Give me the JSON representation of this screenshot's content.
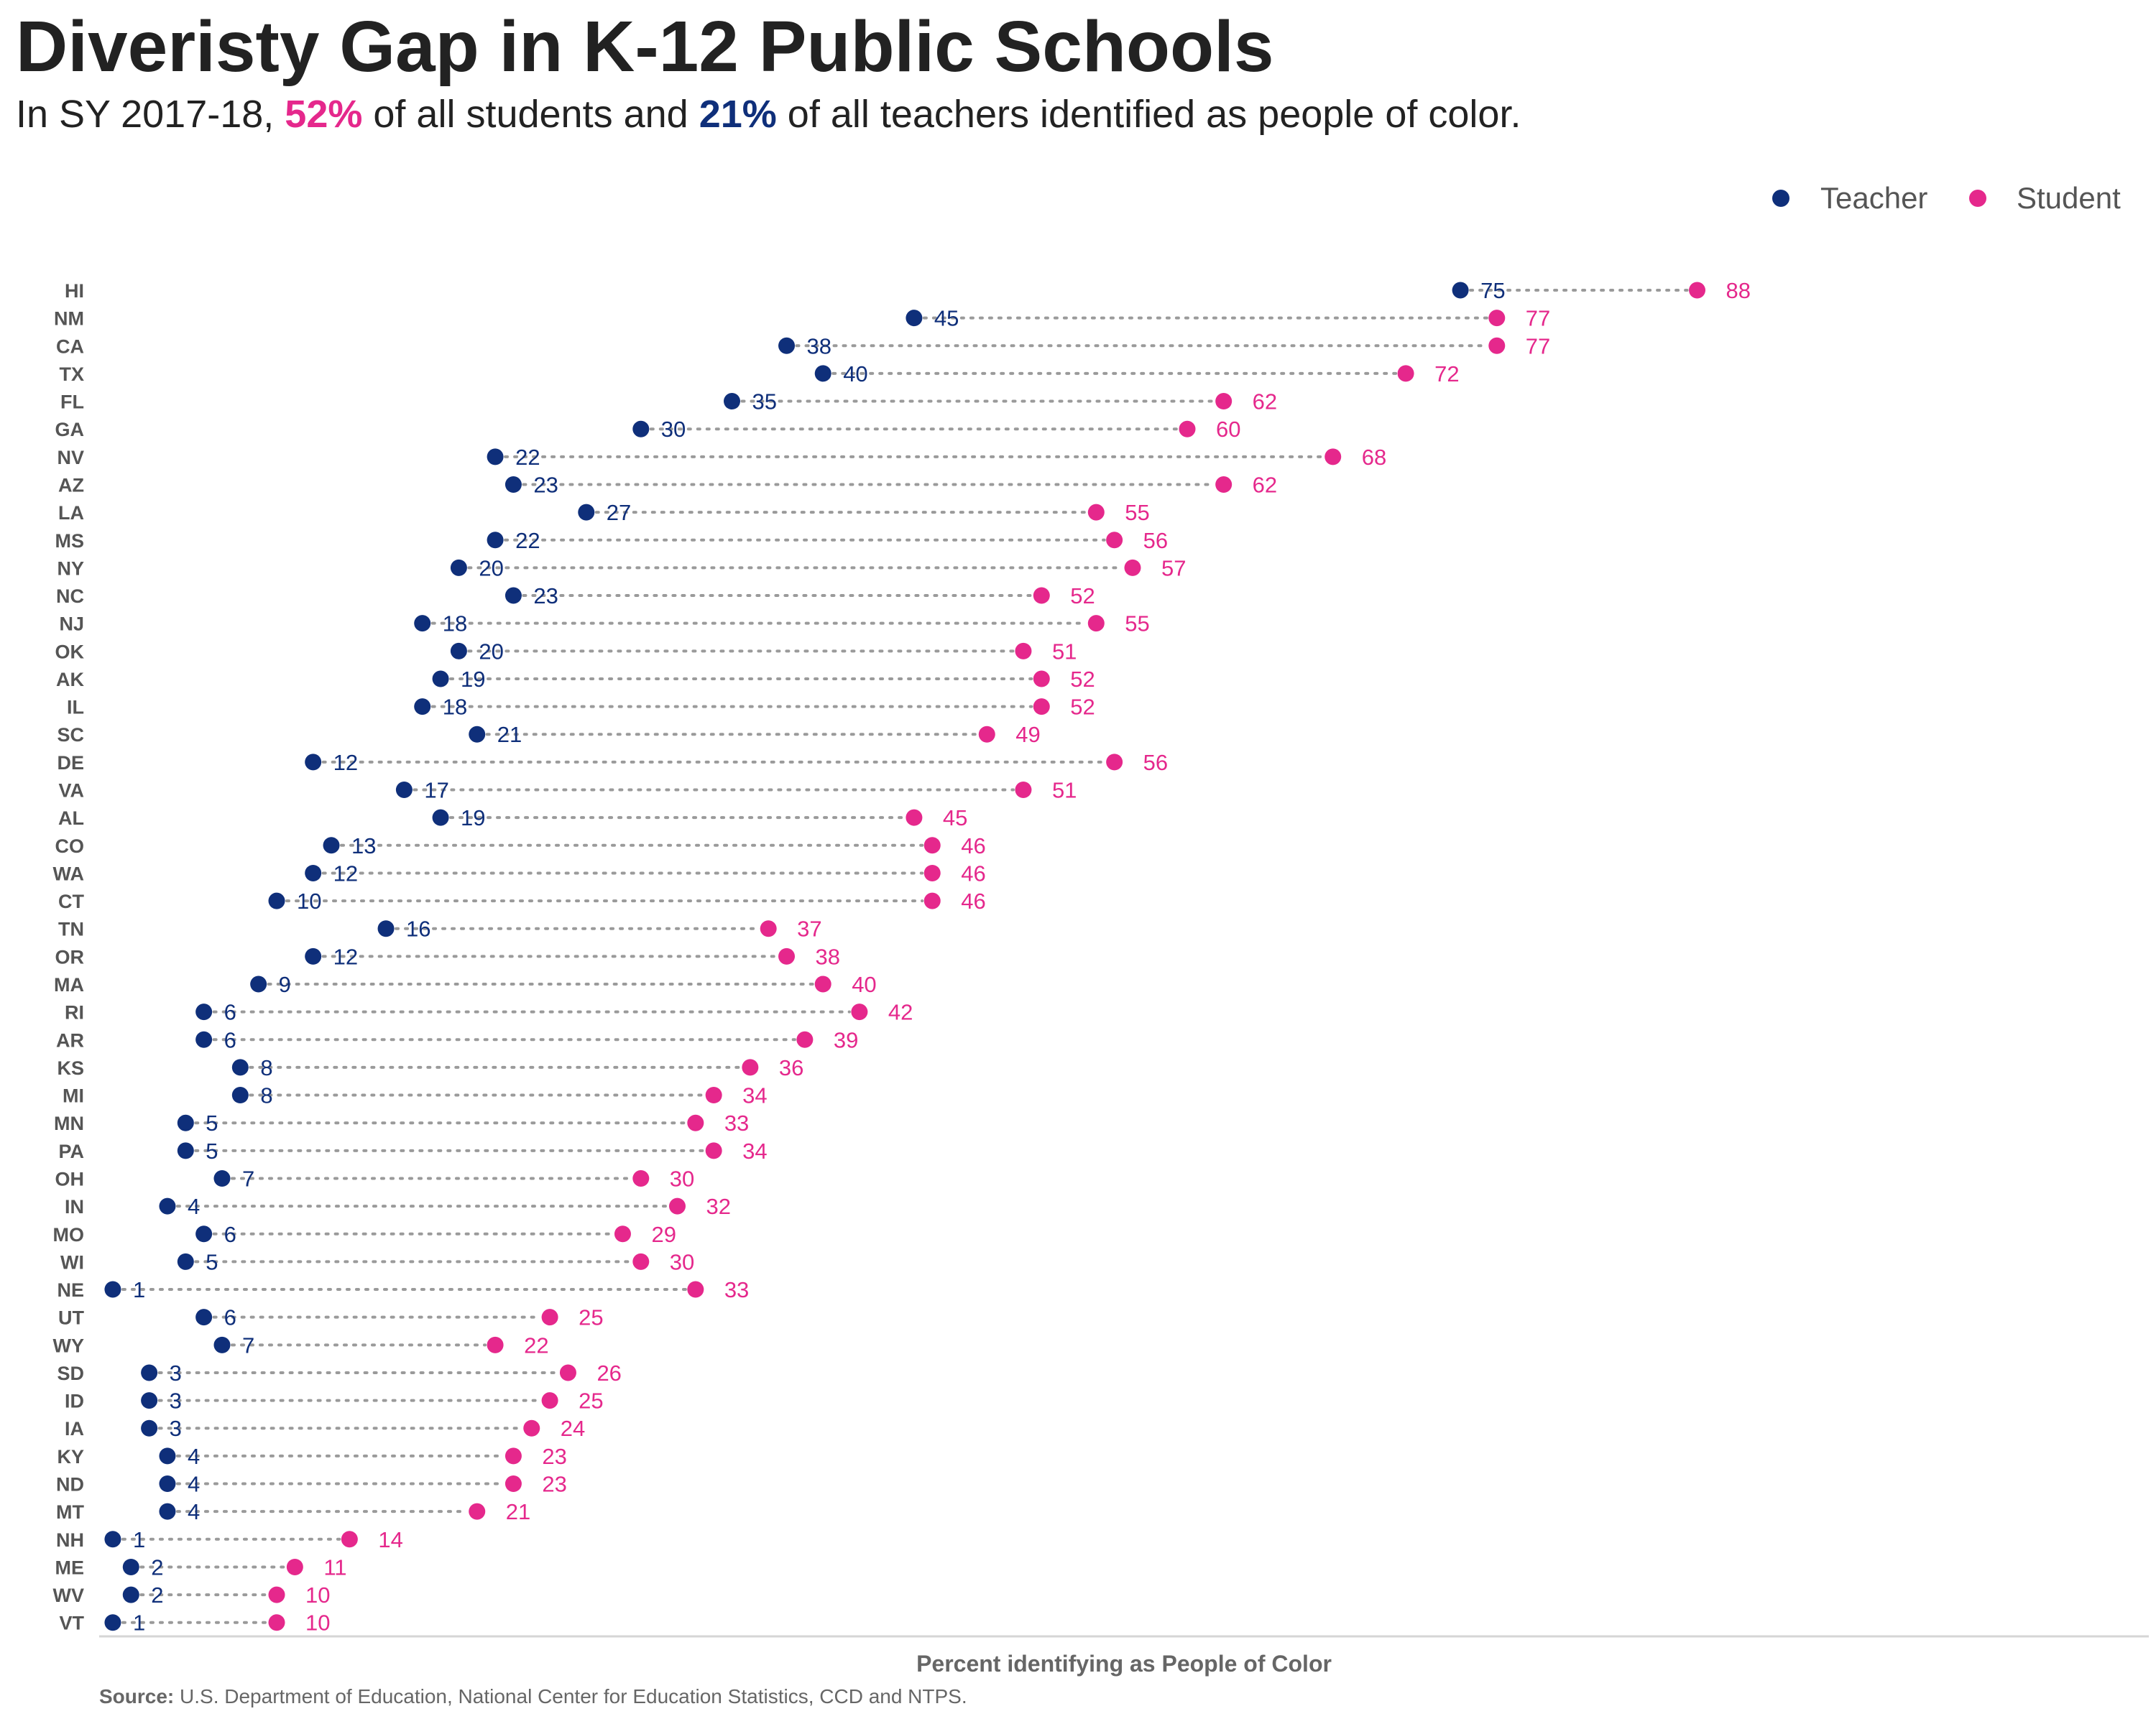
{
  "title": "Diveristy Gap in K-12 Public Schools",
  "subtitle": {
    "prefix": "In SY 2017-18, ",
    "student_pct": "52%",
    "middle": " of all students and ",
    "teacher_pct": "21%",
    "suffix": " of all teachers identified as people of color."
  },
  "source": {
    "label": "Source:",
    "text": " U.S. Department of Education, National Center for Education Statistics, CCD and NTPS."
  },
  "colors": {
    "teacher": "#0f2f7a",
    "student": "#e5288c",
    "connector": "#9a9a9a",
    "state_label": "#555555"
  },
  "chart_data": {
    "type": "dumbbell",
    "xlabel": "Percent identifying as People of Color",
    "ylabel": "",
    "legend_position": "top-right",
    "grid": false,
    "series": [
      {
        "name": "Teacher",
        "key": "teacher"
      },
      {
        "name": "Student",
        "key": "student"
      }
    ],
    "rows": [
      {
        "state": "HI",
        "teacher": 75,
        "student": 88
      },
      {
        "state": "NM",
        "teacher": 45,
        "student": 77
      },
      {
        "state": "CA",
        "teacher": 38,
        "student": 77
      },
      {
        "state": "TX",
        "teacher": 40,
        "student": 72
      },
      {
        "state": "FL",
        "teacher": 35,
        "student": 62
      },
      {
        "state": "GA",
        "teacher": 30,
        "student": 60
      },
      {
        "state": "NV",
        "teacher": 22,
        "student": 68
      },
      {
        "state": "AZ",
        "teacher": 23,
        "student": 62
      },
      {
        "state": "LA",
        "teacher": 27,
        "student": 55
      },
      {
        "state": "MS",
        "teacher": 22,
        "student": 56
      },
      {
        "state": "NY",
        "teacher": 20,
        "student": 57
      },
      {
        "state": "NC",
        "teacher": 23,
        "student": 52
      },
      {
        "state": "NJ",
        "teacher": 18,
        "student": 55
      },
      {
        "state": "OK",
        "teacher": 20,
        "student": 51
      },
      {
        "state": "AK",
        "teacher": 19,
        "student": 52
      },
      {
        "state": "IL",
        "teacher": 18,
        "student": 52
      },
      {
        "state": "SC",
        "teacher": 21,
        "student": 49
      },
      {
        "state": "DE",
        "teacher": 12,
        "student": 56
      },
      {
        "state": "VA",
        "teacher": 17,
        "student": 51
      },
      {
        "state": "AL",
        "teacher": 19,
        "student": 45
      },
      {
        "state": "CO",
        "teacher": 13,
        "student": 46
      },
      {
        "state": "WA",
        "teacher": 12,
        "student": 46
      },
      {
        "state": "CT",
        "teacher": 10,
        "student": 46
      },
      {
        "state": "TN",
        "teacher": 16,
        "student": 37
      },
      {
        "state": "OR",
        "teacher": 12,
        "student": 38
      },
      {
        "state": "MA",
        "teacher": 9,
        "student": 40
      },
      {
        "state": "RI",
        "teacher": 6,
        "student": 42
      },
      {
        "state": "AR",
        "teacher": 6,
        "student": 39
      },
      {
        "state": "KS",
        "teacher": 8,
        "student": 36
      },
      {
        "state": "MI",
        "teacher": 8,
        "student": 34
      },
      {
        "state": "MN",
        "teacher": 5,
        "student": 33
      },
      {
        "state": "PA",
        "teacher": 5,
        "student": 34
      },
      {
        "state": "OH",
        "teacher": 7,
        "student": 30
      },
      {
        "state": "IN",
        "teacher": 4,
        "student": 32
      },
      {
        "state": "MO",
        "teacher": 6,
        "student": 29
      },
      {
        "state": "WI",
        "teacher": 5,
        "student": 30
      },
      {
        "state": "NE",
        "teacher": 1,
        "student": 33
      },
      {
        "state": "UT",
        "teacher": 6,
        "student": 25
      },
      {
        "state": "WY",
        "teacher": 7,
        "student": 22
      },
      {
        "state": "SD",
        "teacher": 3,
        "student": 26
      },
      {
        "state": "ID",
        "teacher": 3,
        "student": 25
      },
      {
        "state": "IA",
        "teacher": 3,
        "student": 24
      },
      {
        "state": "KY",
        "teacher": 4,
        "student": 23
      },
      {
        "state": "ND",
        "teacher": 4,
        "student": 23
      },
      {
        "state": "MT",
        "teacher": 4,
        "student": 21
      },
      {
        "state": "NH",
        "teacher": 1,
        "student": 14
      },
      {
        "state": "ME",
        "teacher": 2,
        "student": 11
      },
      {
        "state": "WV",
        "teacher": 2,
        "student": 10
      },
      {
        "state": "VT",
        "teacher": 1,
        "student": 10
      }
    ]
  }
}
